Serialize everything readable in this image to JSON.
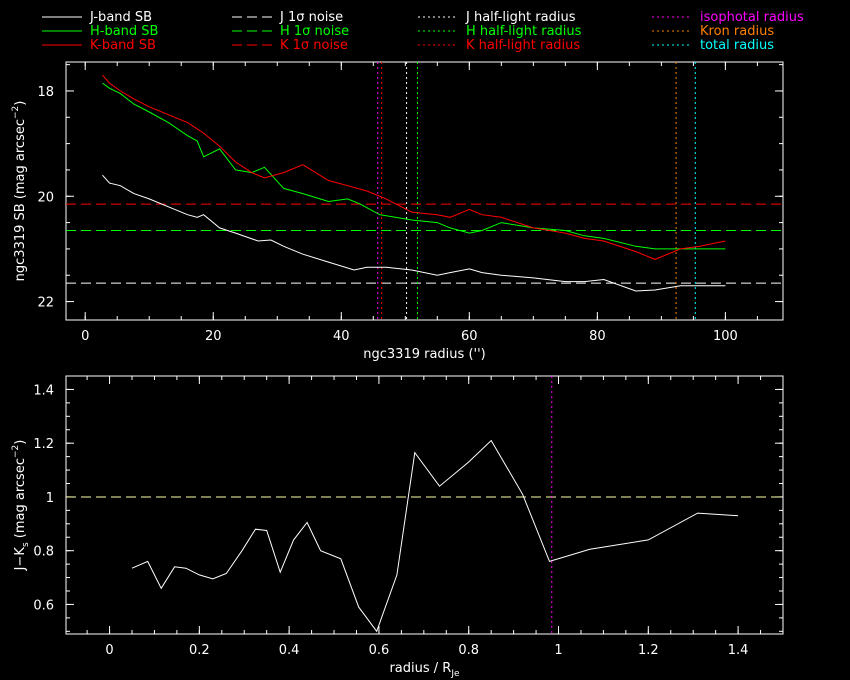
{
  "legend": {
    "columns": [
      [
        {
          "label": "J-band SB",
          "color": "#ffffff",
          "style": "solid"
        },
        {
          "label": "H-band SB",
          "color": "#00ff00",
          "style": "solid"
        },
        {
          "label": "K-band SB",
          "color": "#ff0000",
          "style": "solid"
        }
      ],
      [
        {
          "label": "J 1σ noise",
          "color": "#ffffff",
          "style": "dashed"
        },
        {
          "label": "H 1σ noise",
          "color": "#00ff00",
          "style": "dashed"
        },
        {
          "label": "K 1σ noise",
          "color": "#ff0000",
          "style": "dashed"
        }
      ],
      [
        {
          "label": "J half-light radius",
          "color": "#ffffff",
          "style": "dotted"
        },
        {
          "label": "H half-light radius",
          "color": "#00ff00",
          "style": "dotted"
        },
        {
          "label": "K half-light radius",
          "color": "#ff0000",
          "style": "dotted"
        }
      ],
      [
        {
          "label": "isophotal radius",
          "color": "#ff00ff",
          "style": "dotted"
        },
        {
          "label": "Kron radius",
          "color": "#ff7f00",
          "style": "dotted"
        },
        {
          "label": "total radius",
          "color": "#00ffff",
          "style": "dotted"
        }
      ]
    ]
  },
  "chart_data": [
    {
      "type": "line",
      "xlabel": "ngc3319 radius ('')",
      "ylabel": "ngc3319 SB (mag arcsec",
      "ylabel_sup": "−2",
      "ylabel_close": ")",
      "xlim": [
        -3,
        109
      ],
      "ylim": [
        22.35,
        17.45
      ],
      "y_inverted": true,
      "xticks": [
        0,
        20,
        40,
        60,
        80,
        100
      ],
      "yticks": [
        18,
        20,
        22
      ],
      "series": [
        {
          "name": "J-band SB",
          "color": "#ffffff",
          "style": "solid",
          "x": [
            2.7,
            3.8,
            5.5,
            7.6,
            10,
            13,
            16,
            17.5,
            18.5,
            21,
            23.5,
            27,
            29,
            31,
            34,
            38,
            42,
            44,
            47,
            51,
            55,
            57,
            60,
            62,
            65,
            70,
            75,
            78,
            81,
            86,
            89,
            93,
            96,
            100
          ],
          "y": [
            19.6,
            19.75,
            19.8,
            19.95,
            20.05,
            20.2,
            20.35,
            20.4,
            20.35,
            20.6,
            20.7,
            20.85,
            20.83,
            20.95,
            21.1,
            21.25,
            21.4,
            21.35,
            21.35,
            21.4,
            21.5,
            21.45,
            21.38,
            21.45,
            21.5,
            21.55,
            21.62,
            21.62,
            21.58,
            21.8,
            21.78,
            21.7,
            21.7,
            21.7
          ]
        },
        {
          "name": "H-band SB",
          "color": "#00ff00",
          "style": "solid",
          "x": [
            2.7,
            3.8,
            5.5,
            7.6,
            10,
            13,
            16,
            17.5,
            18.5,
            21,
            23.5,
            26,
            28,
            31,
            34,
            38,
            41,
            43,
            46,
            51,
            55,
            57,
            60,
            62,
            65,
            70,
            75,
            78,
            81,
            86,
            89,
            93,
            96,
            100
          ],
          "y": [
            17.85,
            17.95,
            18.05,
            18.25,
            18.4,
            18.6,
            18.85,
            18.95,
            19.25,
            19.1,
            19.5,
            19.55,
            19.45,
            19.85,
            19.95,
            20.1,
            20.05,
            20.15,
            20.35,
            20.45,
            20.5,
            20.6,
            20.7,
            20.65,
            20.5,
            20.6,
            20.65,
            20.75,
            20.8,
            20.95,
            21.0,
            21.0,
            21.0,
            21.0
          ]
        },
        {
          "name": "K-band SB",
          "color": "#ff0000",
          "style": "solid",
          "x": [
            2.7,
            3.8,
            5.5,
            7.6,
            10,
            13,
            16,
            17.5,
            18.5,
            21,
            23.5,
            26,
            28,
            31,
            34,
            38,
            41,
            44,
            47,
            51,
            55,
            57,
            60,
            62,
            65,
            70,
            75,
            78,
            81,
            86,
            89,
            93,
            96,
            100
          ],
          "y": [
            17.7,
            17.85,
            18.0,
            18.15,
            18.3,
            18.45,
            18.6,
            18.72,
            18.8,
            19.05,
            19.35,
            19.55,
            19.65,
            19.55,
            19.4,
            19.7,
            19.8,
            19.9,
            20.05,
            20.3,
            20.35,
            20.4,
            20.25,
            20.35,
            20.4,
            20.6,
            20.7,
            20.8,
            20.85,
            21.05,
            21.2,
            21.0,
            20.95,
            20.85
          ]
        }
      ],
      "hlines": [
        {
          "name": "J 1σ noise",
          "y": 21.65,
          "color": "#ffffff"
        },
        {
          "name": "H 1σ noise",
          "y": 20.65,
          "color": "#00ff00"
        },
        {
          "name": "K 1σ noise",
          "y": 20.15,
          "color": "#ff0000"
        }
      ],
      "vlines": [
        {
          "name": "isophotal radius",
          "x": 45.7,
          "color": "#ff00ff"
        },
        {
          "name": "K half-light radius",
          "x": 46.3,
          "color": "#ff0000"
        },
        {
          "name": "J half-light radius",
          "x": 50.2,
          "color": "#ffffff"
        },
        {
          "name": "H half-light radius",
          "x": 51.9,
          "color": "#00ff00"
        },
        {
          "name": "Kron radius",
          "x": 92.3,
          "color": "#ff7f00"
        },
        {
          "name": "total radius",
          "x": 95.3,
          "color": "#00ffff"
        }
      ]
    },
    {
      "type": "line",
      "xlabel": "radius / R",
      "xlabel_sub": "Je",
      "ylabel": "J−K",
      "ylabel_sub": "s",
      "ylabel_rest": " (mag arcsec",
      "ylabel_sup": "−2",
      "ylabel_close": ")",
      "xlim": [
        -0.097,
        1.5
      ],
      "ylim": [
        0.49,
        1.45
      ],
      "xticks": [
        0,
        0.2,
        0.4,
        0.6,
        0.8,
        1,
        1.2,
        1.4
      ],
      "yticks": [
        0.6,
        0.8,
        1,
        1.2,
        1.4
      ],
      "series": [
        {
          "name": "J-K",
          "color": "#ffffff",
          "style": "solid",
          "x": [
            0.05,
            0.085,
            0.115,
            0.145,
            0.17,
            0.2,
            0.23,
            0.26,
            0.295,
            0.325,
            0.35,
            0.38,
            0.41,
            0.44,
            0.47,
            0.515,
            0.555,
            0.595,
            0.64,
            0.68,
            0.735,
            0.8,
            0.85,
            0.92,
            0.98,
            1.07,
            1.2,
            1.31,
            1.4
          ],
          "y": [
            0.735,
            0.76,
            0.66,
            0.74,
            0.735,
            0.71,
            0.695,
            0.715,
            0.8,
            0.88,
            0.875,
            0.72,
            0.84,
            0.905,
            0.8,
            0.77,
            0.59,
            0.5,
            0.71,
            1.165,
            1.04,
            1.13,
            1.21,
            1.01,
            0.76,
            0.805,
            0.84,
            0.94,
            0.93
          ]
        }
      ],
      "hlines": [
        {
          "name": "reference",
          "y": 1.0,
          "color": "#ffffaa"
        }
      ],
      "vlines": [
        {
          "name": "isophotal radius",
          "x": 0.985,
          "color": "#ff00ff"
        }
      ]
    }
  ]
}
